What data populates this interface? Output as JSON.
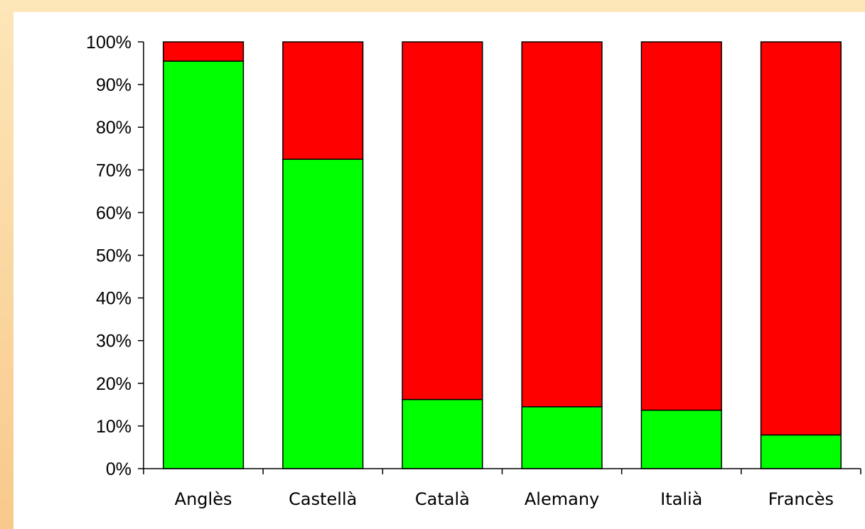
{
  "chart_data": {
    "type": "bar",
    "stacked": true,
    "percent": true,
    "categories": [
      "Anglès",
      "Castellà",
      "Català",
      "Alemany",
      "Italià",
      "Francès"
    ],
    "series": [
      {
        "color": "#00ff00",
        "values": [
          95.5,
          72.5,
          16.2,
          14.5,
          13.7,
          7.9
        ]
      },
      {
        "color": "#ff0000",
        "values": [
          4.5,
          27.5,
          83.8,
          85.5,
          86.3,
          92.1
        ]
      }
    ],
    "y_ticks": [
      "0%",
      "10%",
      "20%",
      "30%",
      "40%",
      "50%",
      "60%",
      "70%",
      "80%",
      "90%",
      "100%"
    ],
    "ylim": [
      0,
      100
    ],
    "grid": false,
    "legend": "none",
    "background": "#ffffff",
    "page_background": "#f8c98c"
  }
}
